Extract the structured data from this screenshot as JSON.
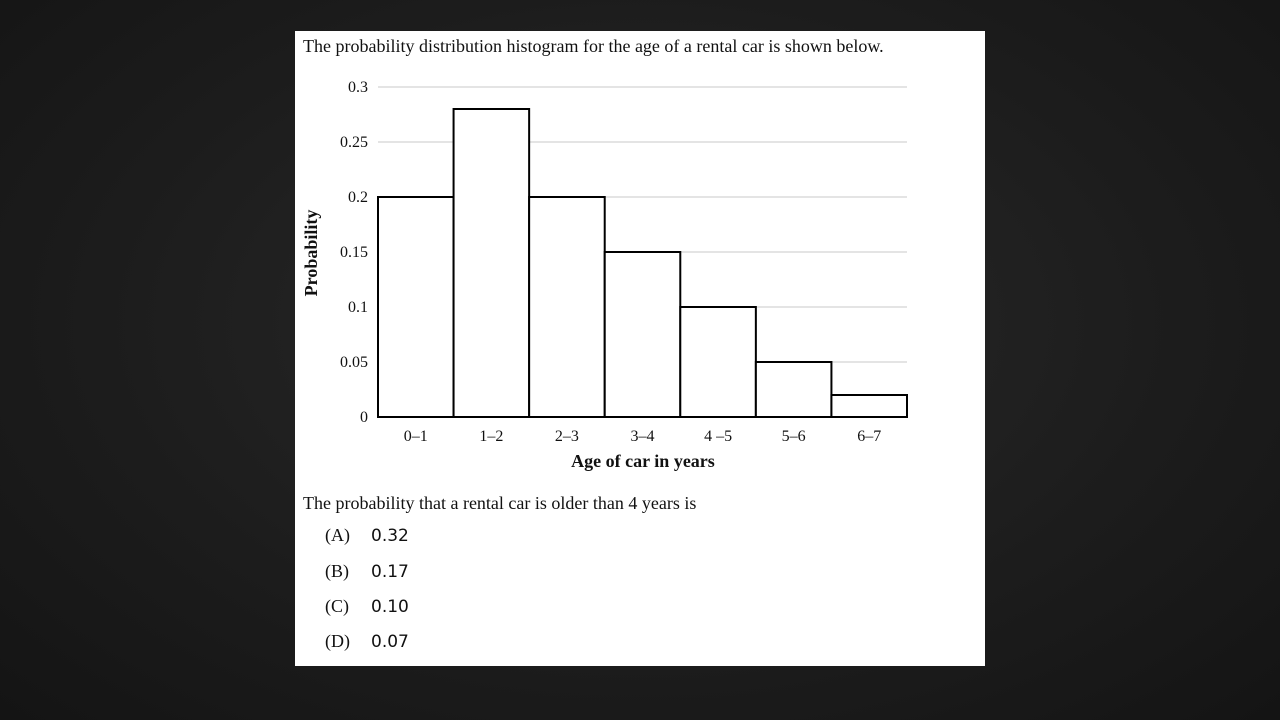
{
  "intro_text": "The probability distribution histogram for the age of a rental car is shown below.",
  "question_text": "The probability that a rental car is older than 4 years is",
  "options": [
    {
      "letter": "(A)",
      "value": "0.32"
    },
    {
      "letter": "(B)",
      "value": "0.17"
    },
    {
      "letter": "(C)",
      "value": "0.10"
    },
    {
      "letter": "(D)",
      "value": "0.07"
    }
  ],
  "chart_data": {
    "type": "bar",
    "title": "",
    "xlabel": "Age of car in years",
    "ylabel": "Probability",
    "categories": [
      "0–1",
      "1–2",
      "2–3",
      "3–4",
      "4 –5",
      "5–6",
      "6–7"
    ],
    "values": [
      0.2,
      0.28,
      0.2,
      0.15,
      0.1,
      0.05,
      0.02
    ],
    "yticks": [
      "0",
      "0.05",
      "0.1",
      "0.15",
      "0.2",
      "0.25",
      "0.3"
    ],
    "ylim": [
      0,
      0.3
    ],
    "grid": true,
    "bar_fill": "#ffffff",
    "bar_stroke": "#000000",
    "grid_color": "#c8c8c8"
  }
}
